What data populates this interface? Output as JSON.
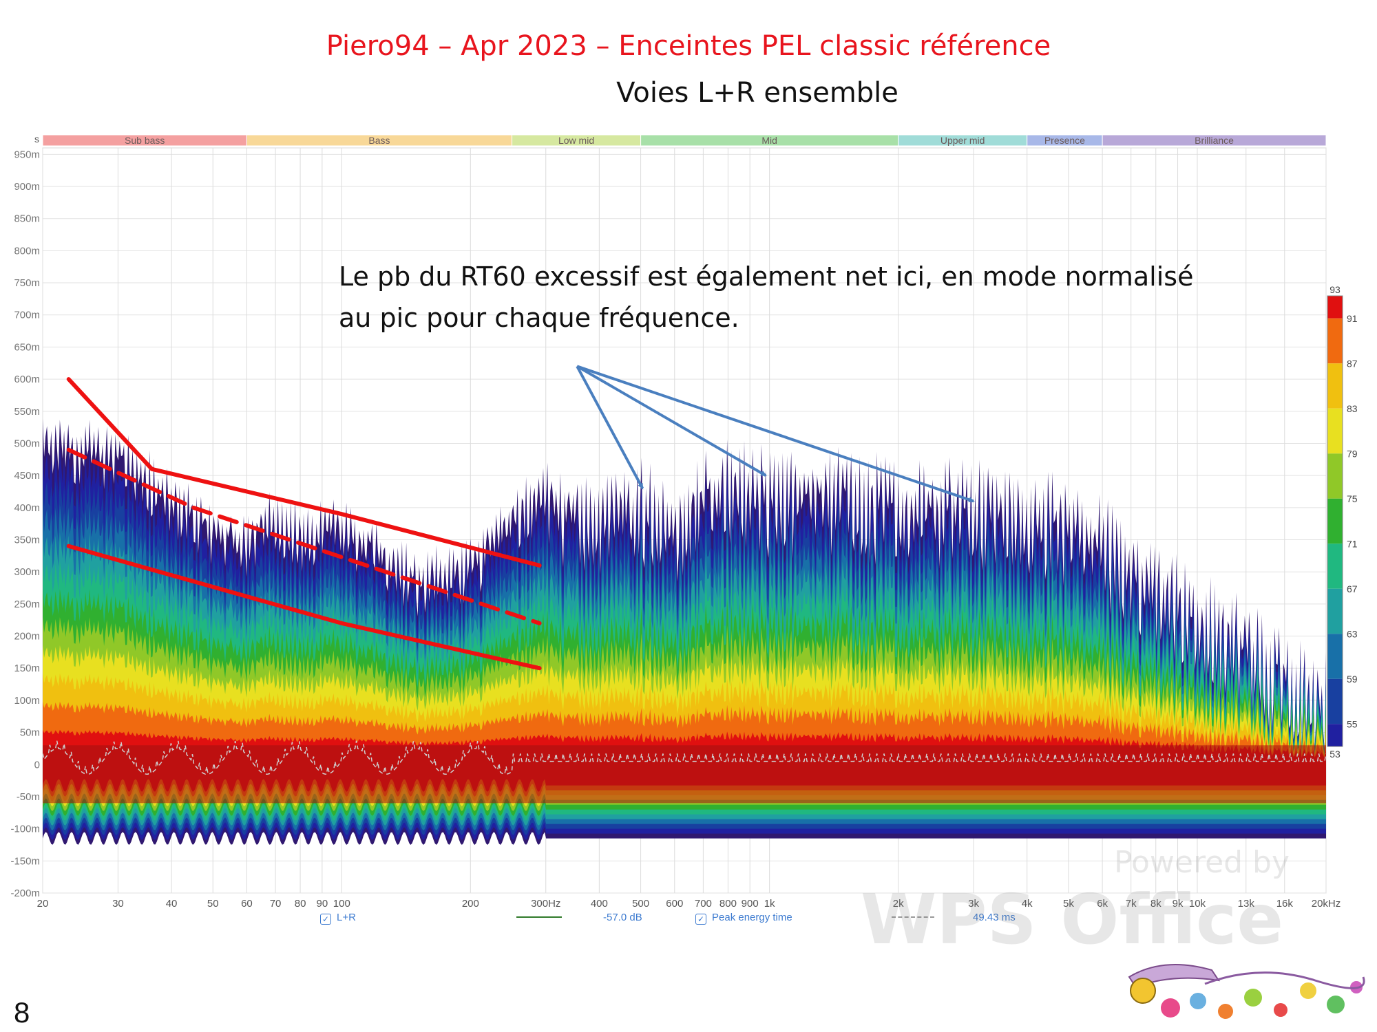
{
  "slide": {
    "title": "Piero94 – Apr 2023 – Enceintes PEL classic référence",
    "subtitle": "Voies L+R ensemble",
    "annotation_line1": "Le pb du RT60 excessif est également net ici, en mode normalisé",
    "annotation_line2": "au pic pour chaque fréquence.",
    "slide_number": "8"
  },
  "colors": {
    "title": "#e8141d",
    "overlay_lines": "#ee1111",
    "arrows": "#4a7fbf",
    "legend_text": "#3d7bd0",
    "peak_line": "#2f7a2a"
  },
  "chart_data": {
    "type": "heatmap",
    "description_type": "spectrogram-waterfall",
    "x_scale": "log",
    "xlim": [
      20,
      20000
    ],
    "ylim": [
      -0.2,
      0.96
    ],
    "y_unit_label": "s",
    "x_ticks": [
      "20",
      "30",
      "40",
      "50",
      "60",
      "70",
      "80",
      "90",
      "100",
      "200",
      "300Hz",
      "400",
      "500",
      "600",
      "700",
      "800",
      "900",
      "1k",
      "2k",
      "3k",
      "4k",
      "5k",
      "6k",
      "7k",
      "8k",
      "9k",
      "10k",
      "13k",
      "16k",
      "20kHz"
    ],
    "x_tick_values": [
      20,
      30,
      40,
      50,
      60,
      70,
      80,
      90,
      100,
      200,
      300,
      400,
      500,
      600,
      700,
      800,
      900,
      1000,
      2000,
      3000,
      4000,
      5000,
      6000,
      7000,
      8000,
      9000,
      10000,
      13000,
      16000,
      20000
    ],
    "y_ticks": [
      "950m",
      "900m",
      "850m",
      "800m",
      "750m",
      "700m",
      "650m",
      "600m",
      "550m",
      "500m",
      "450m",
      "400m",
      "350m",
      "300m",
      "250m",
      "200m",
      "150m",
      "100m",
      "50m",
      "0",
      "-50m",
      "-100m",
      "-150m",
      "-200m"
    ],
    "y_tick_values": [
      0.95,
      0.9,
      0.85,
      0.8,
      0.75,
      0.7,
      0.65,
      0.6,
      0.55,
      0.5,
      0.45,
      0.4,
      0.35,
      0.3,
      0.25,
      0.2,
      0.15,
      0.1,
      0.05,
      0,
      -0.05,
      -0.1,
      -0.15,
      -0.2
    ],
    "bands": [
      {
        "name": "Sub bass",
        "from": 20,
        "to": 60,
        "color": "#f4a0a0"
      },
      {
        "name": "Bass",
        "from": 60,
        "to": 250,
        "color": "#f8d898"
      },
      {
        "name": "Low mid",
        "from": 250,
        "to": 500,
        "color": "#d6e8a0"
      },
      {
        "name": "Mid",
        "from": 500,
        "to": 2000,
        "color": "#a8e0a8"
      },
      {
        "name": "Upper mid",
        "from": 2000,
        "to": 4000,
        "color": "#a0dcd8"
      },
      {
        "name": "Presence",
        "from": 4000,
        "to": 6000,
        "color": "#a8b8e8"
      },
      {
        "name": "Brilliance",
        "from": 6000,
        "to": 20000,
        "color": "#b8a8d8"
      }
    ],
    "colorbar": {
      "min": 53,
      "max": 93,
      "ticks": [
        "93",
        "91",
        "87",
        "83",
        "79",
        "75",
        "71",
        "67",
        "63",
        "59",
        "55",
        "53"
      ],
      "tick_values": [
        93,
        91,
        87,
        83,
        79,
        75,
        71,
        67,
        63,
        59,
        55,
        53
      ],
      "colors": [
        "#e01010",
        "#f06a10",
        "#f0c010",
        "#e8e020",
        "#90c828",
        "#30b030",
        "#20b880",
        "#20a0a0",
        "#1870a8",
        "#1840a0",
        "#2020a0",
        "#301870"
      ]
    },
    "decay_envelope_points": [
      {
        "f": 20,
        "t": 0.52
      },
      {
        "f": 30,
        "t": 0.49
      },
      {
        "f": 40,
        "t": 0.43
      },
      {
        "f": 50,
        "t": 0.37
      },
      {
        "f": 60,
        "t": 0.36
      },
      {
        "f": 70,
        "t": 0.4
      },
      {
        "f": 80,
        "t": 0.37
      },
      {
        "f": 100,
        "t": 0.38
      },
      {
        "f": 150,
        "t": 0.3
      },
      {
        "f": 200,
        "t": 0.32
      },
      {
        "f": 250,
        "t": 0.4
      },
      {
        "f": 300,
        "t": 0.43
      },
      {
        "f": 400,
        "t": 0.4
      },
      {
        "f": 500,
        "t": 0.42
      },
      {
        "f": 600,
        "t": 0.4
      },
      {
        "f": 800,
        "t": 0.45
      },
      {
        "f": 1000,
        "t": 0.44
      },
      {
        "f": 1500,
        "t": 0.44
      },
      {
        "f": 2000,
        "t": 0.42
      },
      {
        "f": 3000,
        "t": 0.42
      },
      {
        "f": 4000,
        "t": 0.41
      },
      {
        "f": 5000,
        "t": 0.39
      },
      {
        "f": 6000,
        "t": 0.36
      },
      {
        "f": 8000,
        "t": 0.3
      },
      {
        "f": 10000,
        "t": 0.25
      },
      {
        "f": 13000,
        "t": 0.2
      },
      {
        "f": 16000,
        "t": 0.15
      },
      {
        "f": 20000,
        "t": 0.12
      }
    ],
    "red_overlay_lines": [
      {
        "style": "solid",
        "points": [
          {
            "f": 23,
            "t": 0.6
          },
          {
            "f": 36,
            "t": 0.46
          },
          {
            "f": 100,
            "t": 0.39
          },
          {
            "f": 290,
            "t": 0.31
          }
        ]
      },
      {
        "style": "dashed",
        "points": [
          {
            "f": 23,
            "t": 0.49
          },
          {
            "f": 45,
            "t": 0.4
          },
          {
            "f": 290,
            "t": 0.22
          }
        ]
      },
      {
        "style": "solid",
        "points": [
          {
            "f": 23,
            "t": 0.34
          },
          {
            "f": 100,
            "t": 0.22
          },
          {
            "f": 290,
            "t": 0.15
          }
        ]
      }
    ],
    "annotation_arrows": {
      "origin": {
        "f": 355,
        "t": 0.62
      },
      "targets": [
        {
          "f": 505,
          "t": 0.43
        },
        {
          "f": 980,
          "t": 0.45
        },
        {
          "f": 3000,
          "t": 0.41
        }
      ]
    },
    "legend": {
      "series_name": "L+R",
      "level_value": "-57.0 dB",
      "peak_label": "Peak energy time",
      "time_value": "49.43 ms"
    }
  },
  "watermark": {
    "line1": "Powered by",
    "line2": "WPS Office"
  }
}
